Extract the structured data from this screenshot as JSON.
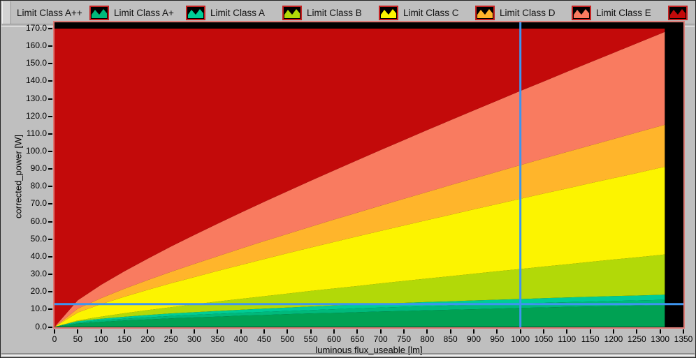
{
  "window": {
    "bg": "#BFBFBF",
    "border": "#232323",
    "plot_bg": "#000000",
    "plot_frame_color": "#DC7B76"
  },
  "legend": {
    "icon_bg": "#000000",
    "icon_border": "#C42222",
    "items": [
      {
        "label": "Limit Class A++",
        "color": "#00A153",
        "icon_visible": false,
        "label_visible": true
      },
      {
        "label": "Limit Class A+",
        "color": "#00B97B",
        "icon_visible": true,
        "label_visible": true
      },
      {
        "label": "Limit Class A",
        "color": "#00CC96",
        "icon_visible": true,
        "label_visible": true
      },
      {
        "label": "Limit Class B",
        "color": "#B2D908",
        "icon_visible": true,
        "label_visible": true
      },
      {
        "label": "Limit Class C",
        "color": "#FCF400",
        "icon_visible": true,
        "label_visible": true
      },
      {
        "label": "Limit Class D",
        "color": "#FFB52B",
        "icon_visible": true,
        "label_visible": true
      },
      {
        "label": "Limit Class E",
        "color": "#F97B60",
        "icon_visible": true,
        "label_visible": true
      },
      {
        "label": "",
        "color": "#C30A0A",
        "icon_visible": true,
        "label_visible": false
      }
    ]
  },
  "chart_data": {
    "type": "area",
    "title": "",
    "xlabel": "luminous flux_useable [lm]",
    "ylabel": "corrected_power [W]",
    "xlim": [
      0,
      1350
    ],
    "ylim": [
      0,
      170
    ],
    "x_tick_step": 50,
    "y_tick_step": 10,
    "grid": false,
    "legend_position": "top",
    "plot_bg": "#000000",
    "data_x_max": 1310,
    "flux_samples": [
      0,
      50,
      100,
      150,
      200,
      250,
      300,
      350,
      400,
      450,
      500,
      550,
      600,
      650,
      700,
      750,
      800,
      850,
      900,
      950,
      1000,
      1050,
      1100,
      1150,
      1200,
      1250,
      1300,
      1310
    ],
    "series": [
      {
        "name": "Limit Class A++",
        "color": "#00A153",
        "values": [
          0,
          2.0,
          2.9,
          3.7,
          4.3,
          4.9,
          5.4,
          5.9,
          6.4,
          6.8,
          7.3,
          7.7,
          8.0,
          8.4,
          8.8,
          9.1,
          9.5,
          9.8,
          10.1,
          10.4,
          10.8,
          11.1,
          11.4,
          11.7,
          11.9,
          12.2,
          12.5,
          12.6
        ]
      },
      {
        "name": "Limit Class A+",
        "color": "#00B97B",
        "values": [
          0,
          2.6,
          3.8,
          4.7,
          5.5,
          6.3,
          6.9,
          7.5,
          8.1,
          8.6,
          9.1,
          9.6,
          10.1,
          10.6,
          11.0,
          11.4,
          11.8,
          12.2,
          12.6,
          13.0,
          13.3,
          13.7,
          14.1,
          14.4,
          14.8,
          15.1,
          15.4,
          15.5
        ]
      },
      {
        "name": "Limit Class A",
        "color": "#00CC96",
        "values": [
          0,
          3.3,
          4.7,
          5.8,
          6.8,
          7.7,
          8.4,
          9.1,
          9.8,
          10.4,
          11.0,
          11.6,
          12.2,
          12.7,
          13.2,
          13.7,
          14.2,
          14.6,
          15.1,
          15.5,
          15.9,
          16.4,
          16.8,
          17.2,
          17.6,
          17.9,
          18.3,
          18.4
        ]
      },
      {
        "name": "Limit Class B",
        "color": "#B2D908",
        "values": [
          0,
          3.7,
          5.9,
          7.8,
          9.6,
          11.2,
          12.9,
          14.5,
          16.0,
          17.5,
          19.0,
          20.5,
          21.9,
          23.3,
          24.8,
          26.2,
          27.6,
          28.9,
          30.3,
          31.7,
          33.0,
          34.4,
          35.7,
          37.1,
          38.4,
          39.7,
          41.0,
          41.3
        ]
      },
      {
        "name": "Limit Class C",
        "color": "#FCF400",
        "values": [
          0,
          8.2,
          13.0,
          17.2,
          21.1,
          24.9,
          28.4,
          31.9,
          35.3,
          38.7,
          42.0,
          45.2,
          48.4,
          51.6,
          54.7,
          57.8,
          60.9,
          63.9,
          67.0,
          70.0,
          73.0,
          76.0,
          78.9,
          81.9,
          84.8,
          87.7,
          90.7,
          91.2
        ]
      },
      {
        "name": "Limit Class D",
        "color": "#FFB52B",
        "values": [
          0,
          10.4,
          16.4,
          21.8,
          26.7,
          31.4,
          35.9,
          40.3,
          44.6,
          48.9,
          53.0,
          57.1,
          61.2,
          65.1,
          69.1,
          73.0,
          76.9,
          80.8,
          84.6,
          88.4,
          92.2,
          96.0,
          99.7,
          103.4,
          107.1,
          110.8,
          114.5,
          115.2
        ]
      },
      {
        "name": "Limit Class E",
        "color": "#F97B60",
        "values": [
          0,
          15.2,
          24.0,
          31.7,
          38.9,
          45.8,
          52.4,
          58.8,
          65.1,
          71.3,
          77.3,
          83.3,
          89.2,
          95.0,
          100.8,
          106.5,
          112.2,
          117.8,
          123.4,
          128.9,
          134.5,
          139.9,
          145.4,
          150.8,
          156.2,
          161.6,
          167.0,
          168.1
        ]
      }
    ],
    "region_above_color": "#C30A0A",
    "cursor": {
      "flux": 1000,
      "power": 13.0,
      "color": "#3E95EF"
    }
  }
}
